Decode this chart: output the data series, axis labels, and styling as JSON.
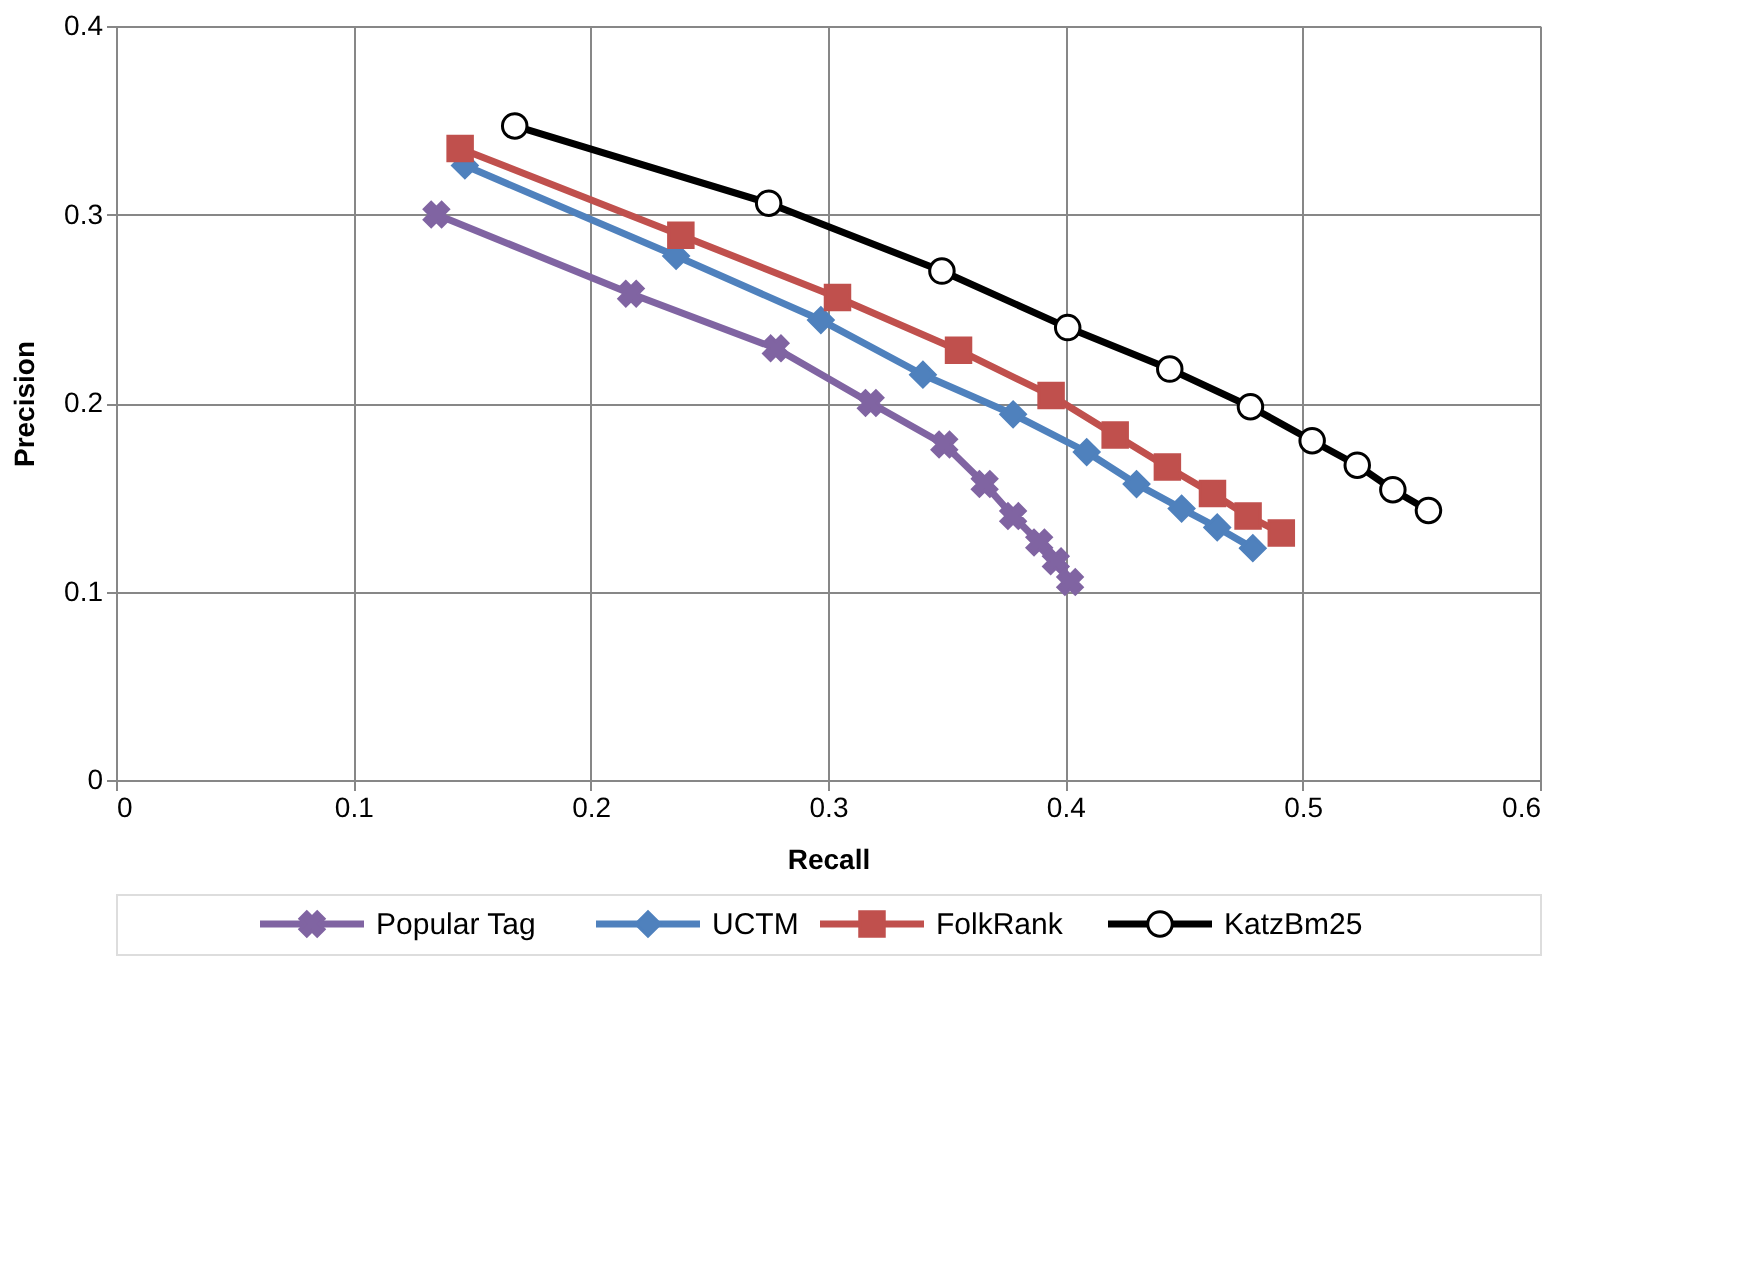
{
  "chart_data": {
    "type": "line",
    "xlabel": "Recall",
    "ylabel": "Precision",
    "xlim": [
      0,
      0.6
    ],
    "xticks": [
      0,
      0.1,
      0.2,
      0.3,
      0.4,
      0.5,
      0.6
    ],
    "ylim": [
      0,
      0.4
    ],
    "yticks": [
      0,
      0.1,
      0.2,
      0.3,
      0.4
    ],
    "grid": true,
    "legend": "bottom",
    "series": [
      {
        "name": "Popular Tag",
        "color": "#8064a2",
        "marker": "cross",
        "x": [
          0.135,
          0.217,
          0.278,
          0.318,
          0.349,
          0.366,
          0.378,
          0.389,
          0.396,
          0.402
        ],
        "values": [
          0.3,
          0.258,
          0.229,
          0.2,
          0.178,
          0.157,
          0.14,
          0.126,
          0.116,
          0.105
        ]
      },
      {
        "name": "UCTM",
        "color": "#4f81bd",
        "marker": "diamond",
        "x": [
          0.147,
          0.236,
          0.297,
          0.34,
          0.378,
          0.409,
          0.43,
          0.449,
          0.464,
          0.479
        ],
        "values": [
          0.326,
          0.278,
          0.244,
          0.215,
          0.194,
          0.174,
          0.157,
          0.144,
          0.134,
          0.123
        ]
      },
      {
        "name": "FolkRank",
        "color": "#c0504d",
        "marker": "square",
        "x": [
          0.145,
          0.238,
          0.304,
          0.355,
          0.394,
          0.421,
          0.443,
          0.462,
          0.477,
          0.491
        ],
        "values": [
          0.335,
          0.289,
          0.256,
          0.228,
          0.204,
          0.183,
          0.166,
          0.152,
          0.14,
          0.131
        ]
      },
      {
        "name": "KatzBm25",
        "color": "#000000",
        "marker": "circle",
        "x": [
          0.168,
          0.275,
          0.348,
          0.401,
          0.444,
          0.478,
          0.504,
          0.523,
          0.538,
          0.553
        ],
        "values": [
          0.347,
          0.306,
          0.27,
          0.24,
          0.218,
          0.198,
          0.18,
          0.167,
          0.154,
          0.143
        ]
      }
    ]
  }
}
